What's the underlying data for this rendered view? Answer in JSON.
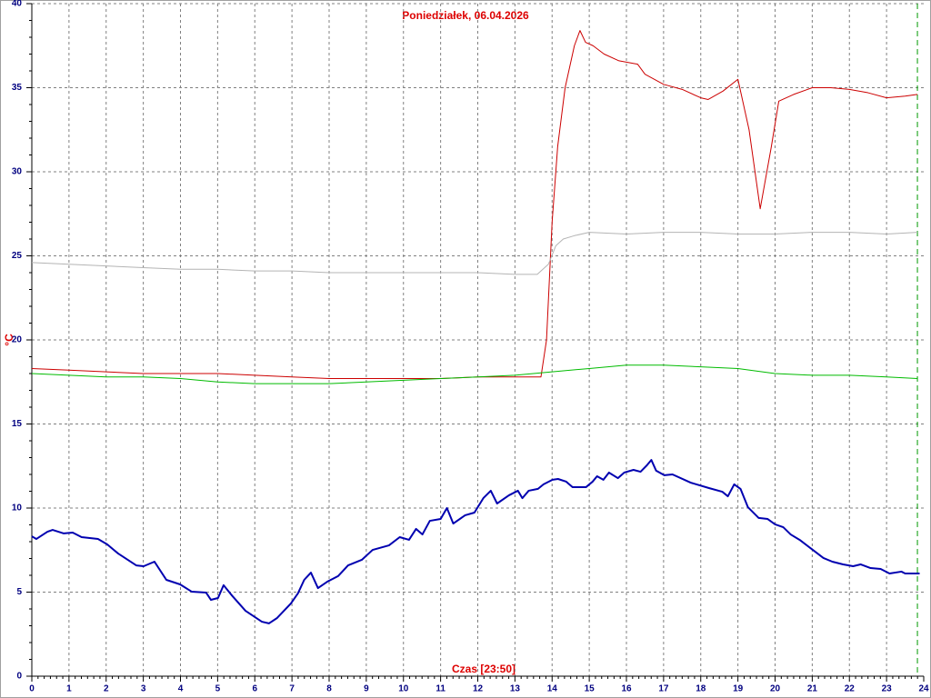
{
  "chart_data": {
    "type": "line",
    "title": "Poniedziałek, 06.04.2026",
    "y_label": "°C",
    "annotation": "Czas [23:50]",
    "marker_x": 23.83,
    "marker_color": "#009900",
    "xlim": [
      0,
      24
    ],
    "xticks": [
      0,
      1,
      2,
      3,
      4,
      5,
      6,
      7,
      8,
      9,
      10,
      11,
      12,
      13,
      14,
      15,
      16,
      17,
      18,
      19,
      20,
      21,
      22,
      23,
      24
    ],
    "ylim": [
      0,
      40
    ],
    "yticks": [
      0,
      5,
      10,
      15,
      20,
      25,
      30,
      35,
      40
    ],
    "grid": true,
    "series": [
      {
        "color": "#cc0000",
        "width": 1,
        "x": [
          0,
          1,
          2,
          3,
          4,
          5,
          6,
          7,
          8,
          9,
          10,
          11,
          12,
          13,
          13.7,
          13.85,
          14.0,
          14.15,
          14.35,
          14.6,
          14.75,
          14.9,
          15.1,
          15.4,
          15.8,
          16.3,
          16.5,
          17.0,
          17.5,
          18.0,
          18.2,
          18.6,
          19.0,
          19.3,
          19.6,
          19.9,
          20.1,
          20.5,
          21.0,
          21.5,
          22,
          22.5,
          23.0,
          23.5,
          23.83
        ],
        "values": [
          18.3,
          18.2,
          18.1,
          18.0,
          18.0,
          18.0,
          17.9,
          17.8,
          17.7,
          17.7,
          17.7,
          17.7,
          17.8,
          17.8,
          17.8,
          20,
          27,
          31.5,
          35,
          37.5,
          38.4,
          37.7,
          37.5,
          37,
          36.6,
          36.4,
          35.8,
          35.2,
          34.9,
          34.4,
          34.3,
          34.8,
          35.5,
          32.5,
          27.8,
          31.5,
          34.2,
          34.6,
          35.0,
          35.0,
          34.9,
          34.7,
          34.4,
          34.5,
          34.6
        ]
      },
      {
        "color": "#b4b4b4",
        "width": 1,
        "x": [
          0,
          1,
          2,
          3,
          4,
          5,
          6,
          7,
          8,
          9,
          10,
          11,
          12,
          13,
          13.6,
          13.9,
          14.1,
          14.3,
          14.6,
          15,
          16,
          17,
          18,
          19,
          20,
          21,
          22,
          23,
          23.83
        ],
        "values": [
          24.6,
          24.5,
          24.4,
          24.3,
          24.2,
          24.2,
          24.1,
          24.1,
          24.0,
          24.0,
          24.0,
          24.0,
          24.0,
          23.9,
          23.9,
          24.5,
          25.6,
          26.0,
          26.2,
          26.4,
          26.3,
          26.4,
          26.4,
          26.3,
          26.3,
          26.4,
          26.4,
          26.3,
          26.4
        ]
      },
      {
        "color": "#00bb00",
        "width": 1,
        "x": [
          0,
          1,
          2,
          3,
          4,
          5,
          6,
          7,
          8,
          9,
          10,
          11,
          12,
          13,
          14,
          15,
          16,
          17,
          18,
          19,
          20,
          21,
          22,
          23,
          23.83
        ],
        "values": [
          18.0,
          17.9,
          17.8,
          17.8,
          17.7,
          17.5,
          17.4,
          17.4,
          17.4,
          17.5,
          17.6,
          17.7,
          17.8,
          17.9,
          18.1,
          18.3,
          18.5,
          18.5,
          18.4,
          18.3,
          18.0,
          17.9,
          17.9,
          17.8,
          17.7
        ]
      },
      {
        "color": "#0000b0",
        "width": 2,
        "x": [
          0,
          0.12,
          0.42,
          0.56,
          0.86,
          1.1,
          1.34,
          1.78,
          2.03,
          2.32,
          2.81,
          3.01,
          3.3,
          3.62,
          3.99,
          4.3,
          4.69,
          4.82,
          5.01,
          5.16,
          5.4,
          5.75,
          6.19,
          6.38,
          6.6,
          6.97,
          7.16,
          7.33,
          7.51,
          7.7,
          7.95,
          8.24,
          8.51,
          8.88,
          9.17,
          9.61,
          9.9,
          10.15,
          10.34,
          10.51,
          10.71,
          11.0,
          11.17,
          11.34,
          11.66,
          11.91,
          12.15,
          12.35,
          12.52,
          12.84,
          13.08,
          13.2,
          13.37,
          13.62,
          13.77,
          14.01,
          14.16,
          14.38,
          14.55,
          14.91,
          15.09,
          15.21,
          15.38,
          15.53,
          15.77,
          15.94,
          16.19,
          16.38,
          16.55,
          16.67,
          16.8,
          17.02,
          17.24,
          17.73,
          18.22,
          18.58,
          18.73,
          18.9,
          19.07,
          19.27,
          19.56,
          19.8,
          20.0,
          20.22,
          20.42,
          20.66,
          20.98,
          21.3,
          21.54,
          21.83,
          22.1,
          22.3,
          22.57,
          22.84,
          23.08,
          23.4,
          23.5,
          23.69,
          23.89
        ],
        "values": [
          8.32,
          8.16,
          8.59,
          8.7,
          8.49,
          8.54,
          8.27,
          8.16,
          7.84,
          7.3,
          6.59,
          6.54,
          6.81,
          5.73,
          5.46,
          5.03,
          4.97,
          4.54,
          4.65,
          5.41,
          4.76,
          3.89,
          3.24,
          3.14,
          3.46,
          4.32,
          4.92,
          5.73,
          6.16,
          5.24,
          5.62,
          5.95,
          6.59,
          6.92,
          7.51,
          7.78,
          8.27,
          8.11,
          8.76,
          8.43,
          9.24,
          9.35,
          10.0,
          9.08,
          9.57,
          9.73,
          10.59,
          11.03,
          10.27,
          10.76,
          11.03,
          10.59,
          11.03,
          11.14,
          11.41,
          11.68,
          11.73,
          11.57,
          11.24,
          11.24,
          11.57,
          11.89,
          11.68,
          12.11,
          11.78,
          12.11,
          12.27,
          12.16,
          12.54,
          12.86,
          12.22,
          11.95,
          12.0,
          11.51,
          11.19,
          10.97,
          10.7,
          11.41,
          11.14,
          10.05,
          9.41,
          9.35,
          9.03,
          8.86,
          8.43,
          8.11,
          7.57,
          7.03,
          6.81,
          6.65,
          6.54,
          6.65,
          6.43,
          6.38,
          6.11,
          6.22,
          6.11,
          6.11,
          6.11
        ]
      }
    ]
  }
}
